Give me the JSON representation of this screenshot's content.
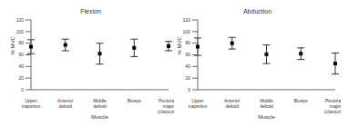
{
  "chart_data": [
    {
      "type": "scatter",
      "title": "Flexion",
      "x_label": "Muscle",
      "y_label": "% MVC",
      "categories": [
        "Upper trapezius",
        "Anterior deltoid",
        "Middle deltoid",
        "Biceps",
        "Pectoralis major (clavicular)"
      ],
      "values": [
        74,
        77,
        62,
        72,
        75
      ],
      "errors": [
        12,
        10,
        18,
        15,
        8
      ],
      "ylim": [
        0,
        120
      ],
      "yticks": [
        0,
        20,
        40,
        60,
        80,
        100,
        120
      ],
      "color": "#000000",
      "marker": "square"
    },
    {
      "type": "scatter",
      "title": "Abduction",
      "x_label": "Muscle",
      "y_label": "% MVC",
      "categories": [
        "Upper trapezius",
        "Anterior deltoid",
        "Middle deltoid",
        "Biceps",
        "Pectoralis major (clavicular)"
      ],
      "values": [
        74,
        80,
        61,
        62,
        45
      ],
      "errors": [
        15,
        10,
        16,
        10,
        18
      ],
      "ylim": [
        0,
        120
      ],
      "yticks": [
        0,
        20,
        40,
        60,
        80,
        100,
        120
      ],
      "color": "#000000",
      "marker": "square"
    }
  ]
}
